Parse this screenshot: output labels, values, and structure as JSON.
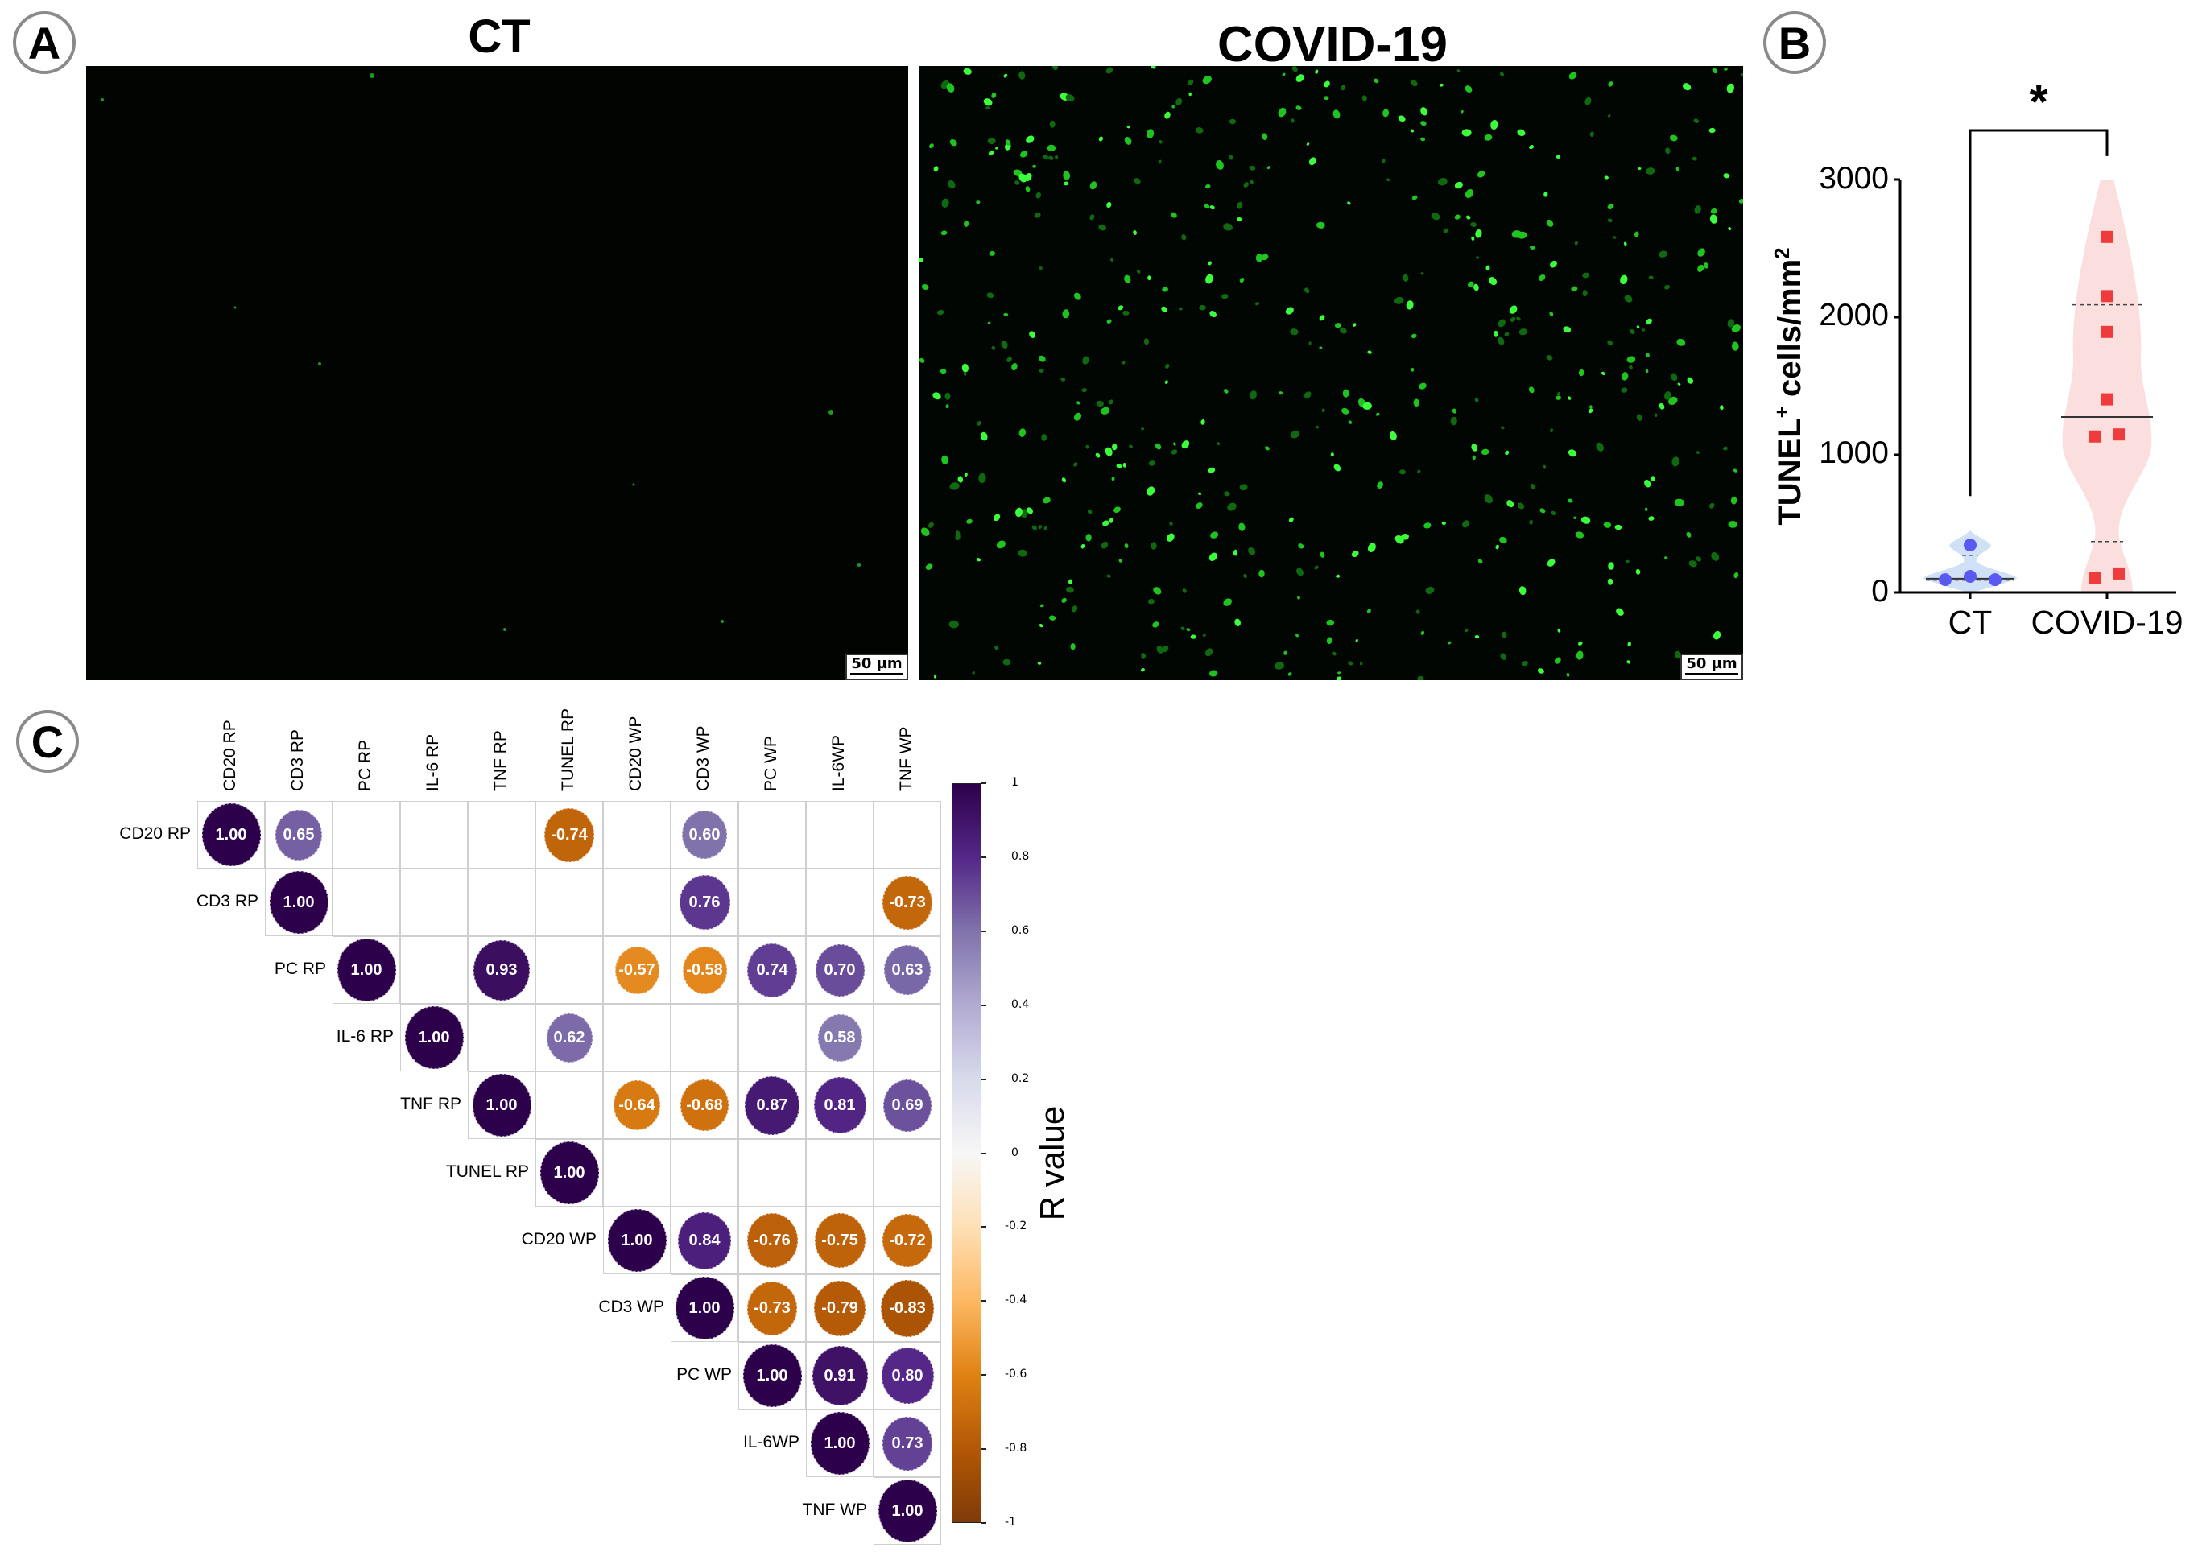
{
  "panels": {
    "A": {
      "letter": "A",
      "images": [
        {
          "title": "CT",
          "scale_bar": "50 µm"
        },
        {
          "title": "COVID-19",
          "scale_bar": "50 µm"
        }
      ]
    },
    "B": {
      "letter": "B"
    },
    "C": {
      "letter": "C"
    }
  },
  "chart_data": [
    {
      "type": "violin",
      "panel": "B",
      "title": "",
      "ylabel": "TUNEL+ cells/mm2",
      "ylabel_main": "TUNEL",
      "ylabel_sup": "+",
      "ylabel_rest": " cells/mm",
      "ylabel_sup2": "2",
      "xlabel": "",
      "categories": [
        "CT",
        "COVID-19"
      ],
      "ylim": [
        0,
        3000
      ],
      "yticks": [
        "0",
        "1000",
        "2000",
        "3000"
      ],
      "significance": "*",
      "series": [
        {
          "name": "CT",
          "marker": "circle",
          "color": "#5a5af0",
          "violin_color": "#cfe0f7",
          "values": [
            345,
            117,
            93,
            93
          ],
          "median": 100,
          "q1": 90,
          "q3": 270
        },
        {
          "name": "COVID-19",
          "marker": "square",
          "color": "#ef3b3b",
          "violin_color": "#fbdede",
          "values": [
            2580,
            2150,
            1890,
            1400,
            1145,
            1130,
            135,
            100
          ],
          "median": 1275,
          "q1": 370,
          "q3": 2090
        }
      ]
    },
    {
      "type": "heatmap",
      "panel": "C",
      "title": "",
      "labels": [
        "CD20 RP",
        "CD3 RP",
        "PC RP",
        "IL-6 RP",
        "TNF RP",
        "TUNEL RP",
        "CD20 WP",
        "CD3 WP",
        "PC WP",
        "IL-6WP",
        "TNF WP"
      ],
      "matrix_upper": [
        [
          1.0,
          0.65,
          null,
          null,
          null,
          -0.74,
          null,
          0.6,
          null,
          null,
          null
        ],
        [
          null,
          1.0,
          null,
          null,
          null,
          null,
          null,
          0.76,
          null,
          null,
          -0.73
        ],
        [
          null,
          null,
          1.0,
          null,
          0.93,
          null,
          -0.57,
          -0.58,
          0.74,
          0.7,
          0.63
        ],
        [
          null,
          null,
          null,
          1.0,
          null,
          0.62,
          null,
          null,
          null,
          0.58,
          null
        ],
        [
          null,
          null,
          null,
          null,
          1.0,
          null,
          -0.64,
          -0.68,
          0.87,
          0.81,
          0.69
        ],
        [
          null,
          null,
          null,
          null,
          null,
          1.0,
          null,
          null,
          null,
          null,
          null
        ],
        [
          null,
          null,
          null,
          null,
          null,
          null,
          1.0,
          0.84,
          -0.76,
          -0.75,
          -0.72
        ],
        [
          null,
          null,
          null,
          null,
          null,
          null,
          null,
          1.0,
          -0.73,
          -0.79,
          -0.83
        ],
        [
          null,
          null,
          null,
          null,
          null,
          null,
          null,
          null,
          1.0,
          0.91,
          0.8
        ],
        [
          null,
          null,
          null,
          null,
          null,
          null,
          null,
          null,
          null,
          1.0,
          0.73
        ],
        [
          null,
          null,
          null,
          null,
          null,
          null,
          null,
          null,
          null,
          null,
          1.0
        ]
      ],
      "colorbar": {
        "label": "R value",
        "ticks": [
          "1",
          "0.8",
          "0.6",
          "0.4",
          "0.2",
          "0",
          "-0.2",
          "-0.4",
          "-0.6",
          "-0.8",
          "-1"
        ],
        "range": [
          -1,
          1
        ],
        "colors": {
          "pos_max": "#2d004b",
          "pos_mid": "#5b2c8f",
          "zero": "#ffffff",
          "neg_mid": "#f1a340",
          "neg_max": "#7f3b08"
        }
      }
    }
  ]
}
